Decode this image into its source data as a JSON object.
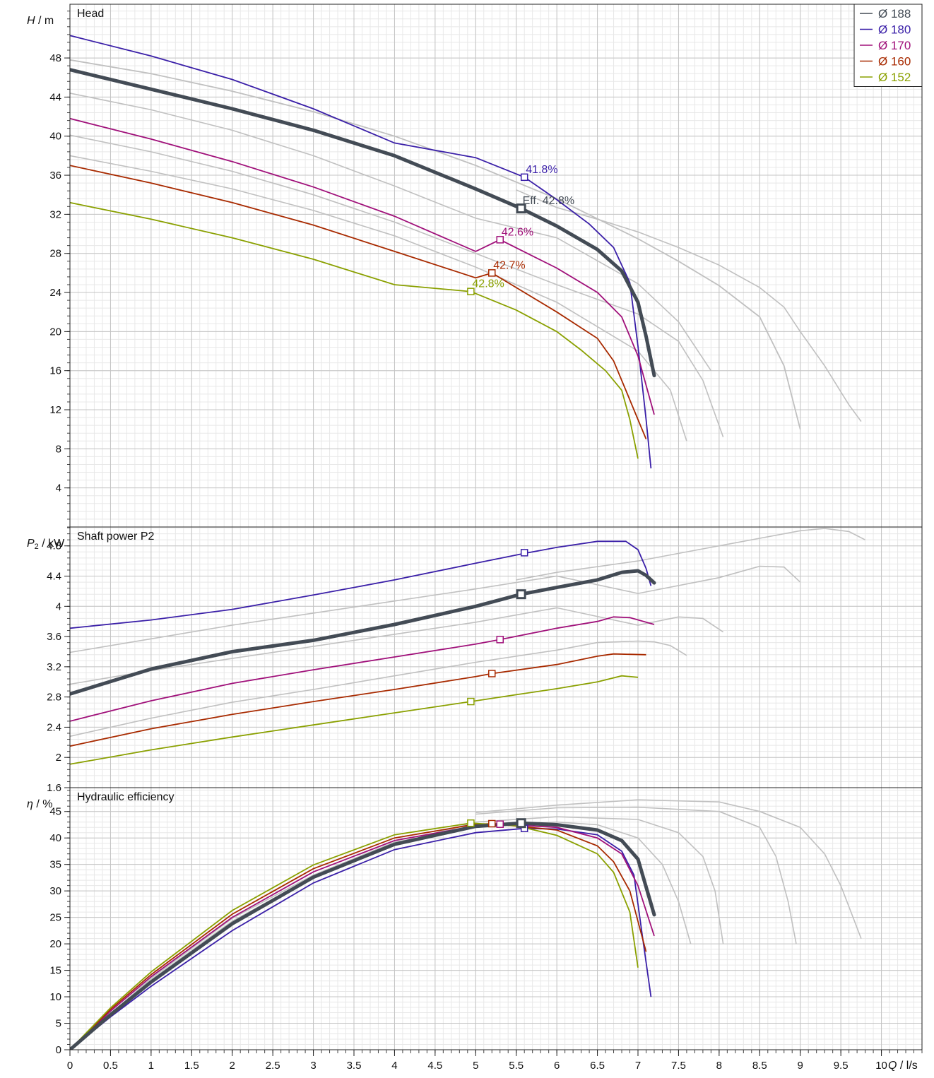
{
  "chart_data": [
    {
      "type": "line",
      "panel": "head",
      "title": "Head",
      "ylabel_symbol": "H",
      "ylabel_unit": " / m",
      "ylim": [
        0,
        53.5
      ],
      "yticks": [
        4,
        8,
        12,
        16,
        20,
        24,
        28,
        32,
        36,
        40,
        44,
        48
      ],
      "grid": true,
      "series": [
        {
          "name": "Ø 188",
          "color": "#c0c0c0",
          "x": [
            0,
            1,
            2,
            3,
            4,
            5,
            6,
            7,
            7.5,
            8,
            8.5,
            8.8,
            9.0
          ],
          "y": [
            47.8,
            46.4,
            44.6,
            42.5,
            40.0,
            37.0,
            33.6,
            29.5,
            27.2,
            24.7,
            21.5,
            16.5,
            10.0
          ]
        },
        {
          "name": "Ø 180",
          "color": "#3a1fa8",
          "x": [
            0,
            1,
            2,
            3,
            4,
            5,
            5.6,
            6,
            6.4,
            6.7,
            6.9,
            7.0,
            7.1,
            7.16
          ],
          "y": [
            50.3,
            48.2,
            45.8,
            42.8,
            39.3,
            37.8,
            35.8,
            33.5,
            31.0,
            28.6,
            25.0,
            18.5,
            11.0,
            6.0
          ]
        },
        {
          "name": "Ø 170",
          "color": "#a0107a",
          "x": [
            0,
            1,
            2,
            3,
            4,
            5,
            5.3,
            6,
            6.5,
            6.8,
            7.0,
            7.1,
            7.2
          ],
          "y": [
            41.8,
            39.7,
            37.4,
            34.8,
            31.8,
            28.2,
            29.4,
            26.5,
            24.0,
            21.5,
            17.5,
            14.5,
            11.5
          ]
        },
        {
          "name": "Ø 160",
          "color": "#a82a00",
          "x": [
            0,
            1,
            2,
            3,
            4,
            5,
            5.2,
            6,
            6.5,
            6.7,
            6.85,
            7.0,
            7.1
          ],
          "y": [
            37.0,
            35.2,
            33.2,
            30.9,
            28.2,
            25.5,
            26.0,
            22.0,
            19.3,
            17.0,
            14.0,
            11.0,
            9.0
          ]
        },
        {
          "name": "Ø 152",
          "color": "#8aa000",
          "x": [
            0,
            1,
            2,
            3,
            4,
            4.94,
            5.5,
            6,
            6.3,
            6.6,
            6.8,
            6.9,
            7.0
          ],
          "y": [
            33.2,
            31.5,
            29.6,
            27.4,
            24.8,
            24.1,
            22.2,
            20.0,
            18.1,
            16.0,
            14.0,
            11.0,
            7.0
          ]
        }
      ],
      "duty_curve": {
        "color": "#434b55",
        "x": [
          0,
          1,
          2,
          3,
          4,
          5,
          5.56,
          6,
          6.5,
          6.8,
          7.0,
          7.1,
          7.2
        ],
        "y": [
          46.8,
          44.8,
          42.8,
          40.6,
          38.0,
          34.6,
          32.6,
          30.8,
          28.4,
          26.2,
          23.0,
          19.5,
          15.5
        ]
      },
      "reference_curves": [
        {
          "x": [
            0,
            1,
            2,
            3,
            4,
            5,
            6,
            6.5,
            7.0,
            7.4,
            7.6
          ],
          "y": [
            38.0,
            36.4,
            34.6,
            32.4,
            29.8,
            26.6,
            23.0,
            20.5,
            18.0,
            14.0,
            8.8
          ]
        },
        {
          "x": [
            0,
            1,
            2,
            3,
            4,
            5,
            6,
            7,
            7.5,
            7.8,
            8.05
          ],
          "y": [
            40.1,
            38.4,
            36.4,
            34.0,
            31.2,
            28.0,
            24.8,
            21.8,
            19.0,
            15.0,
            9.2
          ]
        },
        {
          "x": [
            0,
            1,
            2,
            3,
            4,
            5,
            6,
            7,
            7.5,
            7.9
          ],
          "y": [
            44.4,
            42.7,
            40.6,
            38.0,
            34.9,
            31.6,
            29.6,
            24.9,
            21.0,
            16.0
          ]
        },
        {
          "x": [
            5.5,
            6,
            6.5,
            7.0,
            7.5,
            8.0,
            8.5,
            8.8,
            9.0,
            9.3,
            9.6,
            9.75
          ],
          "y": [
            34.5,
            32.7,
            31.5,
            30.2,
            28.6,
            26.8,
            24.5,
            22.5,
            20.0,
            16.5,
            12.5,
            10.8
          ]
        }
      ],
      "markers": [
        {
          "x": 5.6,
          "y": 35.8,
          "color": "#3a1fa8",
          "label": "41.8%"
        },
        {
          "x": 5.3,
          "y": 29.4,
          "color": "#a0107a",
          "label": "42.6%"
        },
        {
          "x": 5.2,
          "y": 26.0,
          "color": "#a82a00",
          "label": "42.7%"
        },
        {
          "x": 4.94,
          "y": 24.1,
          "color": "#8aa000",
          "label": "42.8%"
        }
      ],
      "duty_marker": {
        "x": 5.56,
        "y": 32.6,
        "label": "Eff.  42.8%",
        "color": "#434b55"
      }
    },
    {
      "type": "line",
      "panel": "power",
      "title": "Shaft power P2",
      "ylabel_symbol": "P",
      "ylabel_sub": "2",
      "ylabel_unit": " / kW",
      "ylim": [
        1.6,
        5.05
      ],
      "yticks": [
        1.6,
        2,
        2.4,
        2.8,
        3.2,
        3.6,
        4,
        4.4,
        4.8
      ],
      "grid": true,
      "series": [
        {
          "name": "Ø 180",
          "color": "#3a1fa8",
          "x": [
            0,
            1,
            2,
            3,
            4,
            5,
            5.6,
            6,
            6.5,
            6.85,
            7.0,
            7.1,
            7.16
          ],
          "y": [
            3.71,
            3.82,
            3.96,
            4.15,
            4.35,
            4.57,
            4.7,
            4.78,
            4.86,
            4.86,
            4.75,
            4.5,
            4.27
          ]
        },
        {
          "name": "Ø 170",
          "color": "#a0107a",
          "x": [
            0,
            1,
            2,
            3,
            4,
            5,
            5.3,
            6,
            6.5,
            6.7,
            6.9,
            7.2
          ],
          "y": [
            2.48,
            2.75,
            2.98,
            3.16,
            3.33,
            3.5,
            3.56,
            3.71,
            3.8,
            3.86,
            3.85,
            3.76
          ]
        },
        {
          "name": "Ø 160",
          "color": "#a82a00",
          "x": [
            0,
            1,
            2,
            3,
            4,
            5,
            5.2,
            6,
            6.5,
            6.7,
            7.1
          ],
          "y": [
            2.15,
            2.38,
            2.57,
            2.74,
            2.9,
            3.07,
            3.11,
            3.23,
            3.34,
            3.37,
            3.36
          ]
        },
        {
          "name": "Ø 152",
          "color": "#8aa000",
          "x": [
            0,
            1,
            2,
            3,
            4,
            4.94,
            5.5,
            6,
            6.5,
            6.8,
            7.0
          ],
          "y": [
            1.91,
            2.1,
            2.27,
            2.43,
            2.59,
            2.74,
            2.83,
            2.91,
            3.0,
            3.08,
            3.06
          ]
        }
      ],
      "duty_curve": {
        "color": "#434b55",
        "x": [
          0,
          1,
          2,
          3,
          4,
          5,
          5.56,
          6,
          6.5,
          6.8,
          7.0,
          7.1,
          7.2
        ],
        "y": [
          2.84,
          3.17,
          3.4,
          3.55,
          3.76,
          4.0,
          4.16,
          4.25,
          4.35,
          4.45,
          4.47,
          4.41,
          4.31
        ]
      },
      "reference_curves": [
        {
          "x": [
            0,
            1,
            2,
            3,
            4,
            5,
            6,
            6.5,
            7.0,
            7.2,
            7.4,
            7.6
          ],
          "y": [
            2.28,
            2.52,
            2.73,
            2.9,
            3.08,
            3.26,
            3.42,
            3.52,
            3.54,
            3.53,
            3.48,
            3.35
          ]
        },
        {
          "x": [
            0,
            1,
            2,
            3,
            4,
            5,
            6,
            7,
            7.5,
            7.8,
            8.05
          ],
          "y": [
            2.97,
            3.15,
            3.31,
            3.47,
            3.63,
            3.79,
            3.98,
            3.75,
            3.86,
            3.84,
            3.66
          ]
        },
        {
          "x": [
            0,
            1,
            2,
            3,
            4,
            5,
            6,
            7,
            8,
            8.5,
            8.8,
            9.0
          ],
          "y": [
            3.39,
            3.57,
            3.75,
            3.91,
            4.07,
            4.23,
            4.4,
            4.17,
            4.38,
            4.53,
            4.52,
            4.32
          ]
        },
        {
          "x": [
            5.5,
            6,
            7,
            7.5,
            8,
            8.5,
            9,
            9.3,
            9.6,
            9.8
          ],
          "y": [
            4.35,
            4.45,
            4.6,
            4.7,
            4.8,
            4.9,
            5.0,
            5.03,
            4.99,
            4.88
          ]
        }
      ],
      "markers": [
        {
          "x": 5.6,
          "y": 4.71,
          "color": "#3a1fa8"
        },
        {
          "x": 5.3,
          "y": 3.56,
          "color": "#a0107a"
        },
        {
          "x": 5.2,
          "y": 3.11,
          "color": "#a82a00"
        },
        {
          "x": 4.94,
          "y": 2.74,
          "color": "#8aa000"
        }
      ],
      "duty_marker": {
        "x": 5.56,
        "y": 4.16,
        "color": "#434b55"
      }
    },
    {
      "type": "line",
      "panel": "efficiency",
      "title": "Hydraulic efficiency",
      "ylabel_symbol": "η",
      "ylabel_unit": " / %",
      "ylim": [
        0,
        49.5
      ],
      "yticks": [
        0,
        5,
        10,
        15,
        20,
        25,
        30,
        35,
        40,
        45
      ],
      "grid": true,
      "series": [
        {
          "name": "Ø 180",
          "color": "#3a1fa8",
          "x": [
            0,
            0.5,
            1,
            2,
            3,
            4,
            5,
            5.6,
            6,
            6.5,
            6.8,
            6.95,
            7.05,
            7.16
          ],
          "y": [
            0,
            6.2,
            12.0,
            22.5,
            31.5,
            37.8,
            41.0,
            41.8,
            41.7,
            40.6,
            37.5,
            33.0,
            22.0,
            10.0
          ]
        },
        {
          "name": "Ø 170",
          "color": "#a0107a",
          "x": [
            0,
            0.5,
            1,
            2,
            3,
            4,
            5,
            5.3,
            6,
            6.5,
            6.8,
            7.0,
            7.2
          ],
          "y": [
            0,
            7.3,
            13.8,
            25.0,
            33.6,
            39.5,
            42.3,
            42.6,
            42.0,
            40.0,
            37.0,
            31.0,
            21.5
          ]
        },
        {
          "name": "Ø 160",
          "color": "#a82a00",
          "x": [
            0,
            0.5,
            1,
            2,
            3,
            4,
            5,
            5.2,
            6,
            6.5,
            6.7,
            6.9,
            7.1
          ],
          "y": [
            0,
            7.6,
            14.2,
            25.6,
            34.2,
            40.0,
            42.6,
            42.7,
            41.5,
            38.5,
            35.5,
            30.0,
            18.5
          ]
        },
        {
          "name": "Ø 152",
          "color": "#8aa000",
          "x": [
            0,
            0.5,
            1,
            2,
            3,
            4,
            4.94,
            5.5,
            6,
            6.5,
            6.7,
            6.9,
            7.0
          ],
          "y": [
            0,
            7.9,
            14.7,
            26.3,
            34.9,
            40.6,
            42.8,
            42.3,
            40.5,
            37.0,
            33.5,
            26.0,
            15.5
          ]
        }
      ],
      "duty_curve": {
        "color": "#434b55",
        "x": [
          0,
          0.5,
          1,
          2,
          3,
          4,
          5,
          5.56,
          6,
          6.5,
          6.8,
          7.0,
          7.2
        ],
        "y": [
          0,
          6.6,
          12.8,
          23.8,
          32.6,
          38.8,
          42.2,
          42.8,
          42.5,
          41.5,
          39.5,
          36.0,
          25.5
        ]
      },
      "reference_curves": [
        {
          "x": [
            0,
            1,
            2,
            3,
            4,
            5,
            6,
            6.5,
            7.0,
            7.3,
            7.5,
            7.65
          ],
          "y": [
            0,
            13.5,
            24.8,
            33.0,
            39.2,
            42.0,
            43.0,
            42.5,
            40.0,
            35.0,
            28.0,
            20.0
          ]
        },
        {
          "x": [
            0,
            1,
            2,
            3,
            4,
            5,
            6,
            7,
            7.5,
            7.8,
            7.95,
            8.05
          ],
          "y": [
            0,
            13.2,
            24.3,
            32.6,
            38.8,
            43.0,
            44.0,
            43.5,
            41.0,
            36.5,
            30.0,
            20.0
          ]
        },
        {
          "x": [
            5,
            6,
            7,
            8,
            8.5,
            8.7,
            8.85,
            8.95
          ],
          "y": [
            44.5,
            45.7,
            45.8,
            45.0,
            42.0,
            36.5,
            28.0,
            20.0
          ]
        },
        {
          "x": [
            5,
            6,
            7,
            8,
            8.5,
            9.0,
            9.3,
            9.5,
            9.65,
            9.75
          ],
          "y": [
            44.8,
            46.2,
            47.2,
            46.8,
            45.0,
            42.0,
            37.0,
            31.0,
            25.0,
            21.0
          ]
        }
      ],
      "markers": [
        {
          "x": 5.6,
          "y": 41.8,
          "color": "#3a1fa8"
        },
        {
          "x": 5.3,
          "y": 42.6,
          "color": "#a0107a"
        },
        {
          "x": 5.2,
          "y": 42.7,
          "color": "#a82a00"
        },
        {
          "x": 4.94,
          "y": 42.8,
          "color": "#8aa000"
        }
      ],
      "duty_marker": {
        "x": 5.56,
        "y": 42.8,
        "color": "#434b55"
      }
    }
  ],
  "x_axis": {
    "xlim": [
      0,
      10.5
    ],
    "xticks": [
      0,
      0.5,
      1,
      1.5,
      2,
      2.5,
      3,
      3.5,
      4,
      4.5,
      5,
      5.5,
      6,
      6.5,
      7,
      7.5,
      8,
      8.5,
      9,
      9.5,
      10
    ],
    "xticklabels": [
      "0",
      "0.5",
      "1",
      "1.5",
      "2",
      "2.5",
      "3",
      "3.5",
      "4",
      "4.5",
      "5",
      "5.5",
      "6",
      "6.5",
      "7",
      "7.5",
      "8",
      "8.5",
      "9",
      "9.5",
      "10"
    ],
    "label_symbol": "Q",
    "label_unit": " / l/s"
  },
  "legend": {
    "placement": "top-right",
    "entries": [
      {
        "label": "Ø 188",
        "color": "#434b55"
      },
      {
        "label": "Ø 180",
        "color": "#3a1fa8"
      },
      {
        "label": "Ø 170",
        "color": "#a0107a"
      },
      {
        "label": "Ø 160",
        "color": "#a82a00"
      },
      {
        "label": "Ø 152",
        "color": "#8aa000"
      }
    ]
  },
  "colors": {
    "grid_major": "#c4c4c4",
    "grid_minor": "#e8e8e8",
    "reference": "#c0c0c0",
    "axis": "#222222"
  }
}
